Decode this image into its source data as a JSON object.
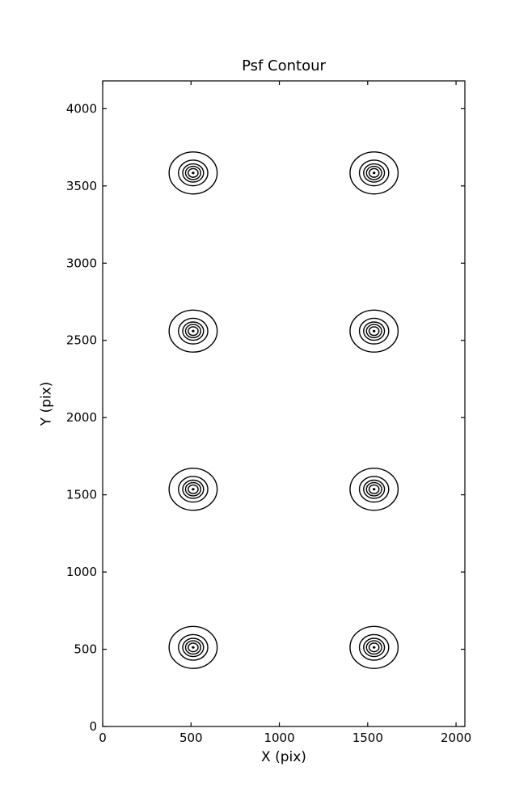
{
  "chart_data": {
    "type": "contour",
    "title": "Psf Contour",
    "xlabel": "X (pix)",
    "ylabel": "Y (pix)",
    "xlim": [
      0,
      2050
    ],
    "ylim": [
      0,
      4180
    ],
    "x_ticks": [
      0,
      500,
      1000,
      1500,
      2000
    ],
    "y_ticks": [
      0,
      500,
      1000,
      1500,
      2000,
      2500,
      3000,
      3500,
      4000
    ],
    "grid": false,
    "legend": null,
    "tick_direction": "in",
    "psf_centers": [
      {
        "x": 512,
        "y": 512
      },
      {
        "x": 1536,
        "y": 512
      },
      {
        "x": 512,
        "y": 1536
      },
      {
        "x": 1536,
        "y": 1536
      },
      {
        "x": 512,
        "y": 2560
      },
      {
        "x": 1536,
        "y": 2560
      },
      {
        "x": 512,
        "y": 3584
      },
      {
        "x": 1536,
        "y": 3584
      }
    ],
    "contour_ring_radii_pix": [
      136,
      83,
      59,
      43,
      28
    ],
    "center_dot_radius_pix": 8,
    "line_color": "#000000",
    "background_color": "#ffffff"
  }
}
